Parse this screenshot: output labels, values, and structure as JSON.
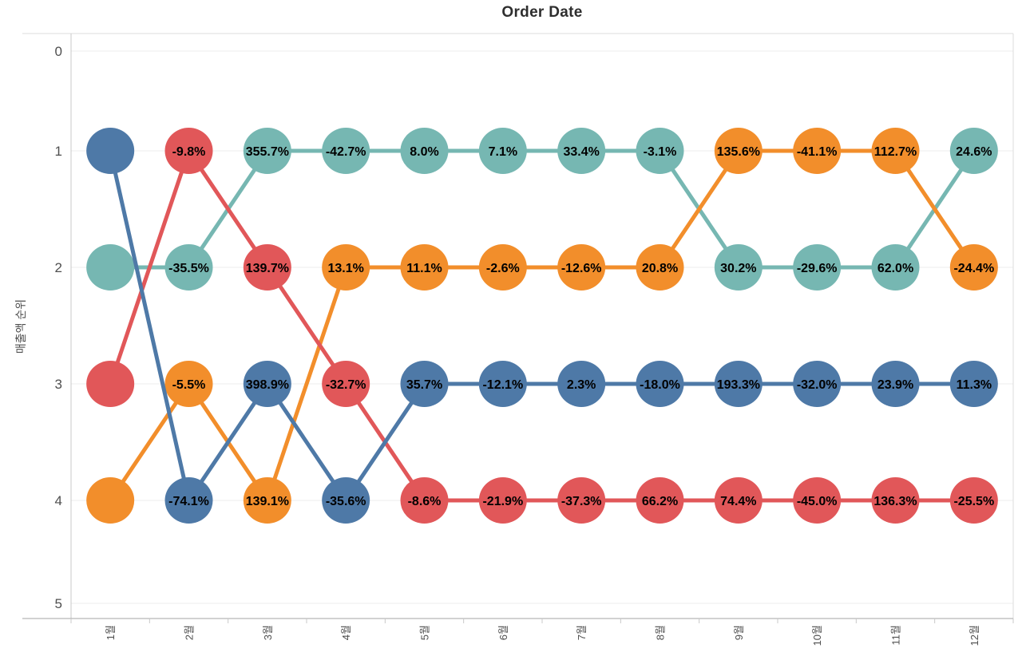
{
  "title": "Order Date",
  "chart_data": {
    "type": "line",
    "variant": "bump-rank-chart",
    "title": "Order Date",
    "xlabel": "",
    "ylabel": "매출액 순위",
    "x_categories": [
      "1월",
      "2월",
      "3월",
      "4월",
      "5월",
      "6월",
      "7월",
      "8월",
      "9월",
      "10월",
      "11월",
      "12월"
    ],
    "y_ticks": [
      "0",
      "1",
      "2",
      "3",
      "4",
      "5"
    ],
    "ylim": [
      0,
      5
    ],
    "y_axis_reversed": true,
    "grid": "horizontal-only",
    "legend": "none",
    "marker": "large-circle",
    "point_label_format": "percent-change-vs-previous-month",
    "series": [
      {
        "id": "teal",
        "color": "#76B7B2",
        "ranks": [
          2,
          2,
          1,
          1,
          1,
          1,
          1,
          1,
          2,
          2,
          2,
          1
        ],
        "point_labels": [
          null,
          "-35.5%",
          "355.7%",
          "-42.7%",
          "8.0%",
          "7.1%",
          "33.4%",
          "-3.1%",
          "30.2%",
          "-29.6%",
          "62.0%",
          "24.6%"
        ]
      },
      {
        "id": "orange",
        "color": "#F28E2B",
        "ranks": [
          4,
          3,
          4,
          2,
          2,
          2,
          2,
          2,
          1,
          1,
          1,
          2
        ],
        "point_labels": [
          null,
          "-5.5%",
          "139.1%",
          "13.1%",
          "11.1%",
          "-2.6%",
          "-12.6%",
          "20.8%",
          "135.6%",
          "-41.1%",
          "112.7%",
          "-24.4%"
        ]
      },
      {
        "id": "red",
        "color": "#E15759",
        "ranks": [
          3,
          1,
          2,
          3,
          4,
          4,
          4,
          4,
          4,
          4,
          4,
          4
        ],
        "point_labels": [
          null,
          "-9.8%",
          "139.7%",
          "-32.7%",
          "-8.6%",
          "-21.9%",
          "-37.3%",
          "66.2%",
          "74.4%",
          "-45.0%",
          "136.3%",
          "-25.5%"
        ]
      },
      {
        "id": "blue",
        "color": "#4E79A7",
        "ranks": [
          1,
          4,
          3,
          4,
          3,
          3,
          3,
          3,
          3,
          3,
          3,
          3
        ],
        "point_labels": [
          null,
          "-74.1%",
          "398.9%",
          "-35.6%",
          "35.7%",
          "-12.1%",
          "2.3%",
          "-18.0%",
          "193.3%",
          "-32.0%",
          "23.9%",
          "11.3%"
        ]
      }
    ],
    "style_colors": {
      "grid": "#ededed",
      "border_light": "#dcdcdc",
      "axis_left": "#c8c8c8",
      "axis_bottom": "#a6a6a6",
      "tick": "#c8c8c8",
      "point_label": "#000000"
    }
  }
}
